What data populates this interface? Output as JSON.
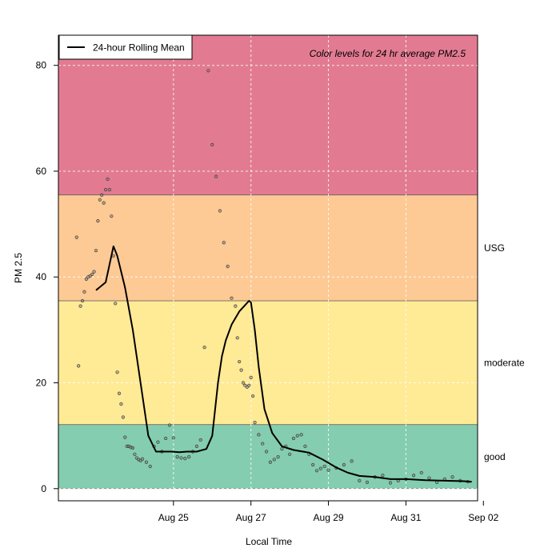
{
  "chart_data": {
    "type": "scatter",
    "xlabel": "Local Time",
    "ylabel": "PM 2.5",
    "annotation": "Color levels for 24 hr average PM2.5",
    "x_ticks": [
      "Aug 25",
      "Aug 27",
      "Aug 29",
      "Aug 31",
      "Sep 02"
    ],
    "x_tick_values": [
      2.0,
      4.0,
      6.0,
      8.0,
      10.0
    ],
    "xlim": [
      -0.97,
      9.85
    ],
    "y_ticks": [
      0,
      20,
      40,
      60,
      80
    ],
    "ylim": [
      -2.3,
      85.7
    ],
    "grid": true,
    "legend": {
      "position": "top-left",
      "entries": [
        "24-hour Rolling Mean"
      ]
    },
    "bands": [
      {
        "label": "",
        "from": 55.5,
        "to": 85.7,
        "color": "#e27b92"
      },
      {
        "label": "USG",
        "from": 35.5,
        "to": 55.5,
        "color": "#fdca95"
      },
      {
        "label": "moderate",
        "from": 12.1,
        "to": 35.5,
        "color": "#ffea96"
      },
      {
        "label": "good",
        "from": 0,
        "to": 12.1,
        "color": "#84cdb0"
      }
    ],
    "series": [
      {
        "name": "24-hour Rolling Mean",
        "kind": "line",
        "x": [
          0.0,
          0.25,
          0.45,
          0.55,
          0.75,
          0.95,
          1.15,
          1.35,
          1.55,
          1.75,
          1.95,
          2.15,
          2.35,
          2.6,
          2.85,
          3.0,
          3.15,
          3.25,
          3.35,
          3.5,
          3.7,
          3.95,
          4.0,
          4.1,
          4.2,
          4.35,
          4.55,
          4.8,
          5.1,
          5.5,
          5.85,
          6.2,
          6.5,
          6.8,
          7.2,
          7.6,
          8.0,
          8.5,
          9.0,
          9.5,
          9.7
        ],
        "y": [
          37.5,
          39,
          45.8,
          44,
          38,
          30,
          20,
          10,
          7,
          7,
          7,
          6.9,
          7,
          7,
          7.5,
          10,
          20,
          25,
          28,
          31,
          33.5,
          35.5,
          35.2,
          30,
          23,
          15,
          10.5,
          8,
          7.3,
          6.8,
          5.5,
          4,
          3,
          2.4,
          2.2,
          1.8,
          1.8,
          1.6,
          1.5,
          1.4,
          1.3
        ]
      },
      {
        "name": "",
        "kind": "points",
        "x": [
          -0.5,
          -0.45,
          -0.4,
          -0.35,
          -0.3,
          -0.25,
          -0.2,
          -0.15,
          -0.1,
          -0.05,
          0.0,
          0.05,
          0.1,
          0.15,
          0.2,
          0.25,
          0.3,
          0.35,
          0.4,
          0.45,
          0.5,
          0.55,
          0.6,
          0.65,
          0.7,
          0.75,
          0.8,
          0.85,
          0.9,
          0.95,
          1.0,
          1.05,
          1.1,
          1.15,
          1.2,
          1.3,
          1.4,
          1.5,
          1.6,
          1.7,
          1.8,
          1.9,
          2.0,
          2.1,
          2.2,
          2.3,
          2.4,
          2.5,
          2.6,
          2.7,
          2.8,
          2.9,
          3.0,
          3.1,
          3.2,
          3.3,
          3.4,
          3.5,
          3.6,
          3.65,
          3.7,
          3.75,
          3.8,
          3.85,
          3.9,
          3.95,
          4.0,
          4.05,
          4.1,
          4.2,
          4.3,
          4.4,
          4.5,
          4.6,
          4.7,
          4.8,
          4.9,
          5.0,
          5.1,
          5.2,
          5.3,
          5.4,
          5.5,
          5.6,
          5.7,
          5.8,
          5.9,
          6.0,
          6.2,
          6.4,
          6.6,
          6.8,
          7.0,
          7.2,
          7.4,
          7.6,
          7.8,
          8.0,
          8.2,
          8.4,
          8.6,
          8.8,
          9.0,
          9.2,
          9.4,
          9.6
        ],
        "y": [
          47.5,
          23.2,
          34.5,
          35.5,
          37.2,
          39.6,
          40,
          40.2,
          40.5,
          41,
          45,
          50.6,
          54.6,
          55.5,
          54,
          56.5,
          58.5,
          56.5,
          51.5,
          44,
          35,
          22,
          18,
          16,
          13.5,
          9.7,
          8,
          8,
          7.8,
          7.7,
          6.5,
          5.8,
          5.5,
          5.3,
          5.6,
          5,
          4.2,
          8,
          8.8,
          7,
          9.5,
          12,
          9.6,
          6,
          5.8,
          5.7,
          6,
          7,
          8,
          9.2,
          26.7,
          79,
          65,
          59,
          52.5,
          46.5,
          42,
          36,
          34.5,
          28.5,
          24,
          22.4,
          20,
          19.5,
          19.2,
          19.5,
          21,
          17.5,
          12.5,
          10.2,
          8.5,
          7,
          5,
          5.5,
          6,
          7.5,
          8,
          6.5,
          9.5,
          10,
          10.2,
          8,
          6.5,
          4.5,
          3.4,
          3.8,
          4.2,
          3.5,
          3.9,
          4.5,
          5.2,
          1.5,
          1.2,
          2.2,
          2.5,
          1.1,
          1.5,
          1.8,
          2.5,
          3,
          2,
          1.2,
          1.8,
          2.2,
          1.5,
          1.3
        ]
      }
    ]
  }
}
